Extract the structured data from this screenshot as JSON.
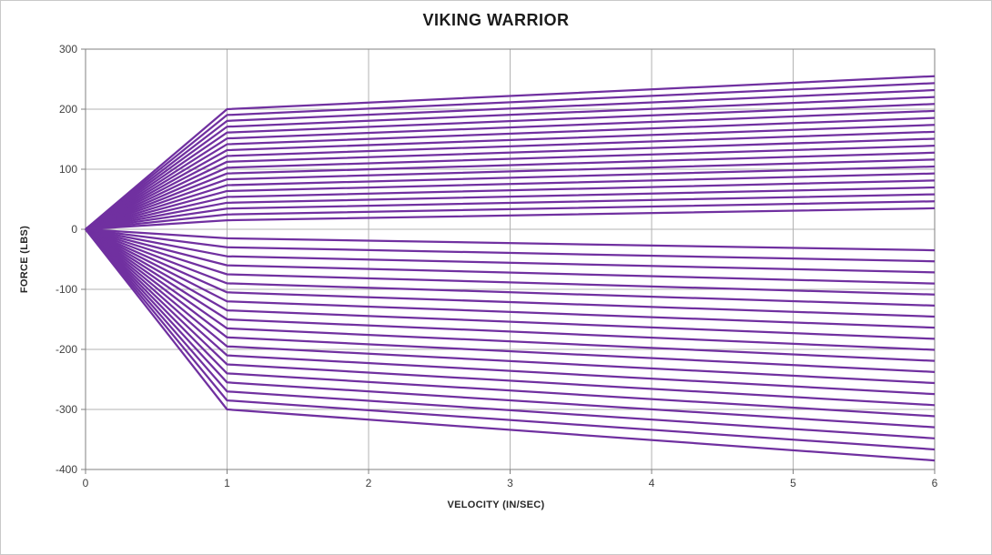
{
  "chart_data": {
    "type": "line",
    "title": "VIKING WARRIOR",
    "xlabel": "VELOCITY (IN/SEC)",
    "ylabel": "FORCE (LBS)",
    "xlim": [
      0,
      6
    ],
    "ylim": [
      -400,
      300
    ],
    "xticks": [
      0,
      1,
      2,
      3,
      4,
      5,
      6
    ],
    "yticks": [
      300,
      200,
      100,
      0,
      -100,
      -200,
      -300,
      -400
    ],
    "grid": true,
    "legend": "none",
    "line_color": "#7030A0",
    "grid_color": "#b3b3b3",
    "axis_color": "#808080",
    "tick_label_color": "#404040",
    "line_width": 2.25,
    "description": "Shock dyno force-velocity fan chart: every adjustment setting rises linearly from the origin to a knee at 1 in/sec, then continues with a shallower slope to 6 in/sec. Positive bundle spans ~200 to ~15 lbs at the knee (~255 to ~35 lbs at 6 in/sec); negative bundle spans ~-15 to ~-300 lbs at the knee (~-35 to ~-385 lbs at 6 in/sec).",
    "x": [
      0,
      1,
      6
    ],
    "series": [
      {
        "name": "positive-01",
        "values": [
          0,
          200.0,
          255.0
        ]
      },
      {
        "name": "positive-02",
        "values": [
          0,
          190.3,
          243.4
        ]
      },
      {
        "name": "positive-03",
        "values": [
          0,
          180.5,
          231.8
        ]
      },
      {
        "name": "positive-04",
        "values": [
          0,
          170.8,
          220.3
        ]
      },
      {
        "name": "positive-05",
        "values": [
          0,
          161.1,
          208.7
        ]
      },
      {
        "name": "positive-06",
        "values": [
          0,
          151.3,
          197.1
        ]
      },
      {
        "name": "positive-07",
        "values": [
          0,
          141.6,
          185.5
        ]
      },
      {
        "name": "positive-08",
        "values": [
          0,
          131.8,
          173.9
        ]
      },
      {
        "name": "positive-09",
        "values": [
          0,
          122.1,
          162.4
        ]
      },
      {
        "name": "positive-10",
        "values": [
          0,
          112.4,
          150.8
        ]
      },
      {
        "name": "positive-11",
        "values": [
          0,
          102.6,
          139.2
        ]
      },
      {
        "name": "positive-12",
        "values": [
          0,
          92.9,
          127.6
        ]
      },
      {
        "name": "positive-13",
        "values": [
          0,
          83.2,
          116.1
        ]
      },
      {
        "name": "positive-14",
        "values": [
          0,
          73.4,
          104.5
        ]
      },
      {
        "name": "positive-15",
        "values": [
          0,
          63.7,
          92.9
        ]
      },
      {
        "name": "positive-16",
        "values": [
          0,
          53.9,
          81.3
        ]
      },
      {
        "name": "positive-17",
        "values": [
          0,
          44.2,
          69.7
        ]
      },
      {
        "name": "positive-18",
        "values": [
          0,
          34.5,
          58.2
        ]
      },
      {
        "name": "positive-19",
        "values": [
          0,
          24.7,
          46.6
        ]
      },
      {
        "name": "positive-20",
        "values": [
          0,
          15.0,
          35.0
        ]
      },
      {
        "name": "negative-01",
        "values": [
          0,
          -15,
          -35.0
        ]
      },
      {
        "name": "negative-02",
        "values": [
          0,
          -30,
          -53.4
        ]
      },
      {
        "name": "negative-03",
        "values": [
          0,
          -45,
          -71.8
        ]
      },
      {
        "name": "negative-04",
        "values": [
          0,
          -60,
          -90.3
        ]
      },
      {
        "name": "negative-05",
        "values": [
          0,
          -75,
          -108.7
        ]
      },
      {
        "name": "negative-06",
        "values": [
          0,
          -90,
          -127.1
        ]
      },
      {
        "name": "negative-07",
        "values": [
          0,
          -105,
          -145.5
        ]
      },
      {
        "name": "negative-08",
        "values": [
          0,
          -120,
          -163.9
        ]
      },
      {
        "name": "negative-09",
        "values": [
          0,
          -135,
          -182.4
        ]
      },
      {
        "name": "negative-10",
        "values": [
          0,
          -150,
          -200.8
        ]
      },
      {
        "name": "negative-11",
        "values": [
          0,
          -165,
          -219.2
        ]
      },
      {
        "name": "negative-12",
        "values": [
          0,
          -180,
          -237.6
        ]
      },
      {
        "name": "negative-13",
        "values": [
          0,
          -195,
          -256.1
        ]
      },
      {
        "name": "negative-14",
        "values": [
          0,
          -210,
          -274.5
        ]
      },
      {
        "name": "negative-15",
        "values": [
          0,
          -225,
          -292.9
        ]
      },
      {
        "name": "negative-16",
        "values": [
          0,
          -240,
          -311.3
        ]
      },
      {
        "name": "negative-17",
        "values": [
          0,
          -255,
          -329.7
        ]
      },
      {
        "name": "negative-18",
        "values": [
          0,
          -270,
          -348.2
        ]
      },
      {
        "name": "negative-19",
        "values": [
          0,
          -285,
          -366.6
        ]
      },
      {
        "name": "negative-20",
        "values": [
          0,
          -300,
          -385.0
        ]
      }
    ]
  }
}
